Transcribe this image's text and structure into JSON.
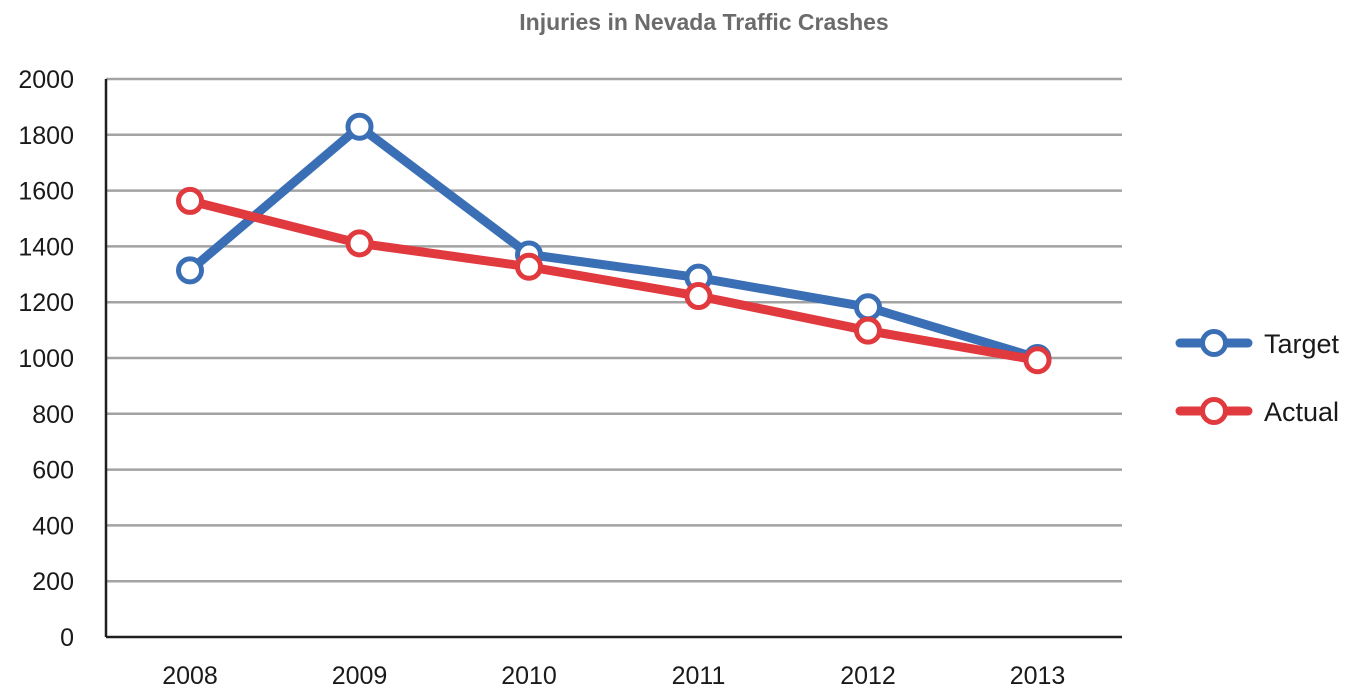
{
  "chart_data": {
    "type": "line",
    "title": "Injuries in Nevada Traffic Crashes",
    "xlabel": "",
    "ylabel": "",
    "categories": [
      "2008",
      "2009",
      "2010",
      "2011",
      "2012",
      "2013"
    ],
    "ylim": [
      0,
      2000
    ],
    "yticks": [
      0,
      200,
      400,
      600,
      800,
      1000,
      1200,
      1400,
      1600,
      1800,
      2000
    ],
    "grid": true,
    "legend_position": "right",
    "series": [
      {
        "name": "Target",
        "color": "#3a6fb6",
        "values": [
          1314,
          1829,
          1371,
          1288,
          1182,
          1000
        ]
      },
      {
        "name": "Actual",
        "color": "#e0393e",
        "values": [
          1563,
          1411,
          1327,
          1222,
          1098,
          992
        ]
      }
    ]
  }
}
